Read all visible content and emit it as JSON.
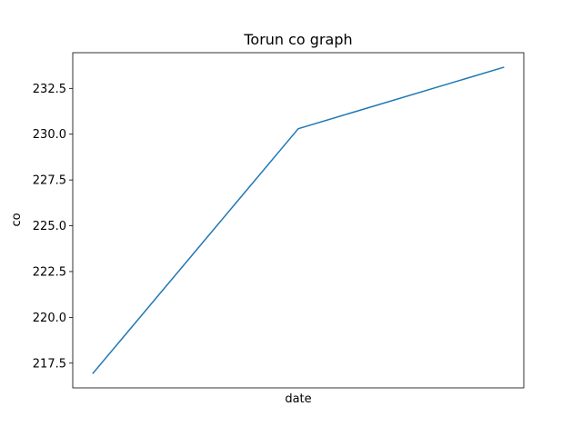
{
  "chart_data": {
    "type": "line",
    "title": "Torun co graph",
    "xlabel": "date",
    "ylabel": "co",
    "x": [
      "",
      "",
      ""
    ],
    "series": [
      {
        "values": [
          216.95,
          230.3,
          233.65
        ],
        "color": "#1f77b4"
      }
    ],
    "ylim": [
      216.15,
      234.45
    ],
    "yticks": [
      217.5,
      220.0,
      222.5,
      225.0,
      227.5,
      230.0,
      232.5
    ],
    "ytick_labels": [
      "217.5",
      "220.0",
      "222.5",
      "225.0",
      "227.5",
      "230.0",
      "232.5"
    ],
    "grid": false,
    "legend": "none"
  }
}
